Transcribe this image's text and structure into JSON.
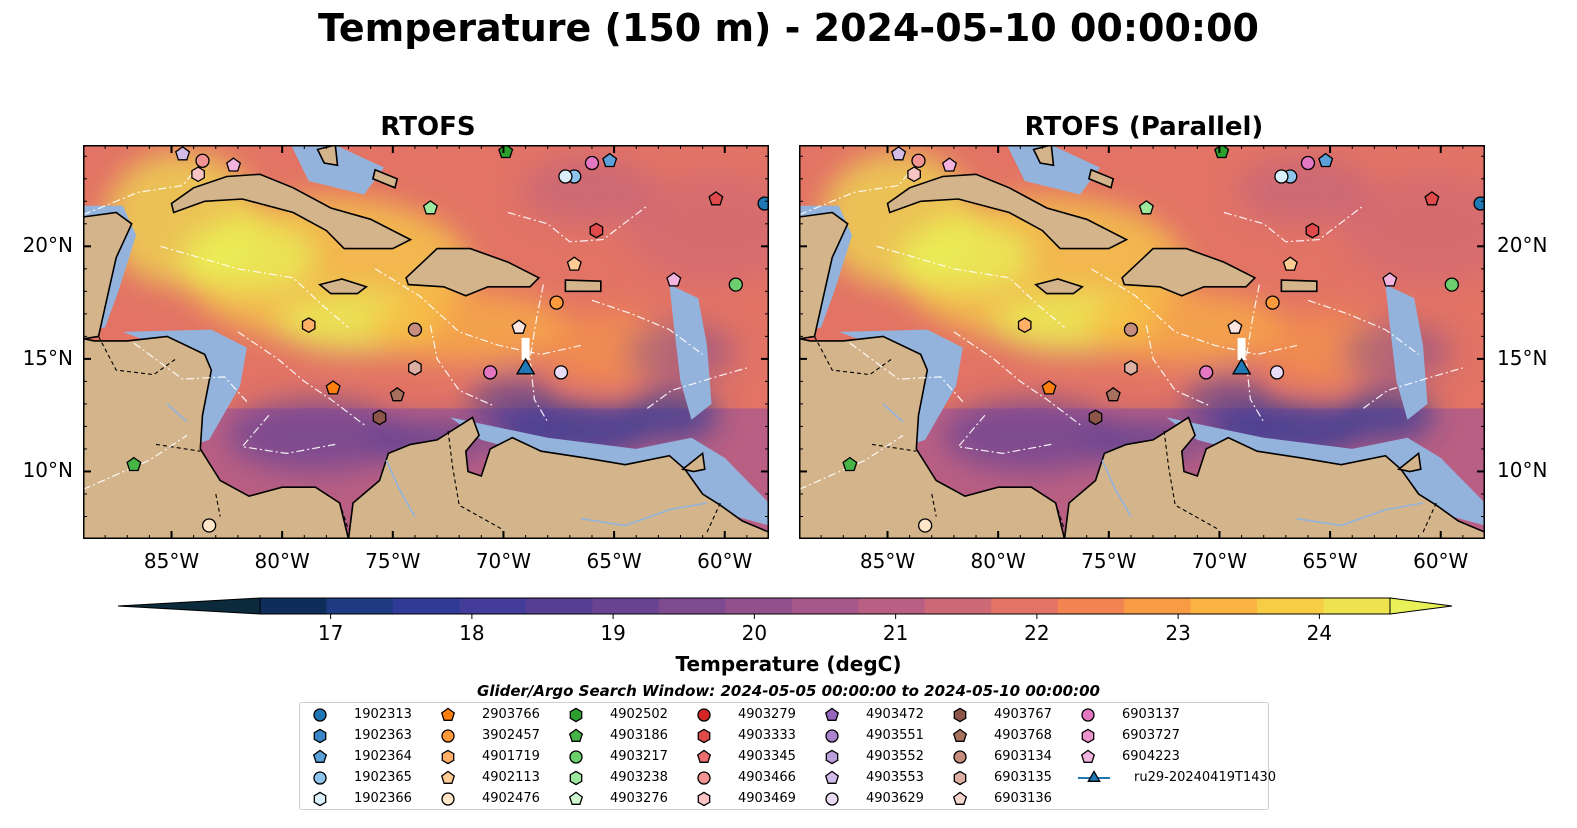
{
  "title": "Temperature (150 m) - 2024-05-10 00:00:00",
  "panels": [
    {
      "title": "RTOFS"
    },
    {
      "title": "RTOFS (Parallel)"
    }
  ],
  "axes": {
    "lon_ticks": [
      "85°W",
      "80°W",
      "75°W",
      "70°W",
      "65°W",
      "60°W"
    ],
    "lat_ticks": [
      "20°N",
      "15°N",
      "10°N"
    ],
    "lon_range": [
      -89.0,
      -58.0
    ],
    "lat_range": [
      7.0,
      24.5
    ]
  },
  "colorbar": {
    "label": "Temperature (degC)",
    "ticks": [
      "17",
      "18",
      "19",
      "20",
      "21",
      "22",
      "23",
      "24"
    ],
    "range": [
      16.5,
      24.5
    ],
    "step": 0.5,
    "extend": "both",
    "colors": [
      "#0b2a3c",
      "#0e2d5a",
      "#1e3a82",
      "#2f3b96",
      "#433c98",
      "#573e95",
      "#6b4393",
      "#7e4b90",
      "#92518d",
      "#a5578a",
      "#b95f83",
      "#cd6877",
      "#e27365",
      "#f18451",
      "#f99a45",
      "#fbb341",
      "#f7cd45",
      "#efe24f",
      "#e8f157"
    ]
  },
  "map_colors": {
    "land": "#d4b48a",
    "shelf": "#94b3dc",
    "deep_pacific": "#082533",
    "coast": "#000000",
    "eez": "#ffffff"
  },
  "legend": {
    "title": "Glider/Argo Search Window: 2024-05-05 00:00:00 to 2024-05-10 00:00:00",
    "items": [
      {
        "label": "1902313",
        "marker": "circle",
        "color": "#1f77b4"
      },
      {
        "label": "1902363",
        "marker": "hexagon",
        "color": "#3a86c8"
      },
      {
        "label": "1902364",
        "marker": "pentagon",
        "color": "#5ca0d8"
      },
      {
        "label": "1902365",
        "marker": "circle",
        "color": "#8ec3ec"
      },
      {
        "label": "1902366",
        "marker": "hexagon",
        "color": "#dbeefb"
      },
      {
        "label": "2903766",
        "marker": "pentagon",
        "color": "#ff7f0e"
      },
      {
        "label": "3902457",
        "marker": "circle",
        "color": "#ff9a3c"
      },
      {
        "label": "4901719",
        "marker": "hexagon",
        "color": "#ffb066"
      },
      {
        "label": "4902113",
        "marker": "pentagon",
        "color": "#ffcb94"
      },
      {
        "label": "4902476",
        "marker": "circle",
        "color": "#ffe6c8"
      },
      {
        "label": "4902502",
        "marker": "hexagon",
        "color": "#2ca02c"
      },
      {
        "label": "4903186",
        "marker": "pentagon",
        "color": "#46b446"
      },
      {
        "label": "4903217",
        "marker": "circle",
        "color": "#6cce6c"
      },
      {
        "label": "4903238",
        "marker": "hexagon",
        "color": "#9ee89e"
      },
      {
        "label": "4903276",
        "marker": "pentagon",
        "color": "#d0f8d0"
      },
      {
        "label": "4903279",
        "marker": "circle",
        "color": "#d62728"
      },
      {
        "label": "4903333",
        "marker": "hexagon",
        "color": "#e04a4a"
      },
      {
        "label": "4903345",
        "marker": "pentagon",
        "color": "#ea6e6e"
      },
      {
        "label": "4903466",
        "marker": "circle",
        "color": "#f29494"
      },
      {
        "label": "4903469",
        "marker": "hexagon",
        "color": "#fac4c4"
      },
      {
        "label": "4903472",
        "marker": "pentagon",
        "color": "#9467bd"
      },
      {
        "label": "4903551",
        "marker": "circle",
        "color": "#a882cc"
      },
      {
        "label": "4903552",
        "marker": "hexagon",
        "color": "#bc9ed9"
      },
      {
        "label": "4903553",
        "marker": "pentagon",
        "color": "#d2bce8"
      },
      {
        "label": "4903629",
        "marker": "circle",
        "color": "#e8dcf5"
      },
      {
        "label": "4903767",
        "marker": "hexagon",
        "color": "#8c564b"
      },
      {
        "label": "4903768",
        "marker": "pentagon",
        "color": "#a8705f"
      },
      {
        "label": "6903134",
        "marker": "circle",
        "color": "#c48d7e"
      },
      {
        "label": "6903135",
        "marker": "hexagon",
        "color": "#ddb0a4"
      },
      {
        "label": "6903136",
        "marker": "pentagon",
        "color": "#f5d6cc"
      },
      {
        "label": "6903137",
        "marker": "circle",
        "color": "#e377c2"
      },
      {
        "label": "6903727",
        "marker": "hexagon",
        "color": "#ea94d0"
      },
      {
        "label": "6904223",
        "marker": "pentagon",
        "color": "#f2b4df"
      },
      {
        "label": "ru29-20240419T1430",
        "marker": "triangle",
        "color": "#1f77b4",
        "line": true
      }
    ]
  },
  "observations": [
    {
      "lon": -84.5,
      "lat": 24.1,
      "marker": "pentagon",
      "color": "#d2bce8"
    },
    {
      "lon": -83.6,
      "lat": 23.8,
      "marker": "circle",
      "color": "#f29494"
    },
    {
      "lon": -83.8,
      "lat": 23.2,
      "marker": "hexagon",
      "color": "#fac4c4"
    },
    {
      "lon": -82.2,
      "lat": 23.6,
      "marker": "pentagon",
      "color": "#f2b4df"
    },
    {
      "lon": -69.9,
      "lat": 24.2,
      "marker": "pentagon",
      "color": "#2ca02c"
    },
    {
      "lon": -66.0,
      "lat": 23.7,
      "marker": "circle",
      "color": "#e377c2"
    },
    {
      "lon": -65.2,
      "lat": 23.8,
      "marker": "pentagon",
      "color": "#5ca0d8"
    },
    {
      "lon": -66.8,
      "lat": 23.1,
      "marker": "circle",
      "color": "#8ec3ec"
    },
    {
      "lon": -67.2,
      "lat": 23.1,
      "marker": "circle",
      "color": "#dbeefb"
    },
    {
      "lon": -73.3,
      "lat": 21.7,
      "marker": "pentagon",
      "color": "#9ee89e"
    },
    {
      "lon": -60.4,
      "lat": 22.1,
      "marker": "pentagon",
      "color": "#e04a4a"
    },
    {
      "lon": -58.2,
      "lat": 21.9,
      "marker": "circle",
      "color": "#1f77b4"
    },
    {
      "lon": -65.8,
      "lat": 20.7,
      "marker": "hexagon",
      "color": "#e04a4a"
    },
    {
      "lon": -66.8,
      "lat": 19.2,
      "marker": "pentagon",
      "color": "#ffcb94"
    },
    {
      "lon": -62.3,
      "lat": 18.5,
      "marker": "pentagon",
      "color": "#f2b4df"
    },
    {
      "lon": -59.5,
      "lat": 18.3,
      "marker": "circle",
      "color": "#6cce6c"
    },
    {
      "lon": -67.6,
      "lat": 17.5,
      "marker": "circle",
      "color": "#ff9a3c"
    },
    {
      "lon": -69.3,
      "lat": 16.4,
      "marker": "pentagon",
      "color": "#fde6df"
    },
    {
      "lon": -78.8,
      "lat": 16.5,
      "marker": "hexagon",
      "color": "#ffb066"
    },
    {
      "lon": -74.0,
      "lat": 16.3,
      "marker": "circle",
      "color": "#c48d7e"
    },
    {
      "lon": -74.0,
      "lat": 14.6,
      "marker": "hexagon",
      "color": "#ddb0a4"
    },
    {
      "lon": -70.6,
      "lat": 14.4,
      "marker": "circle",
      "color": "#e377c2"
    },
    {
      "lon": -67.4,
      "lat": 14.4,
      "marker": "circle",
      "color": "#e8dcf5"
    },
    {
      "lon": -77.7,
      "lat": 13.7,
      "marker": "pentagon",
      "color": "#ff7f0e"
    },
    {
      "lon": -74.8,
      "lat": 13.4,
      "marker": "pentagon",
      "color": "#a8705f"
    },
    {
      "lon": -75.6,
      "lat": 12.4,
      "marker": "hexagon",
      "color": "#8c564b"
    },
    {
      "lon": -86.7,
      "lat": 10.3,
      "marker": "pentagon",
      "color": "#46b446"
    },
    {
      "lon": -83.3,
      "lat": 7.6,
      "marker": "circle",
      "color": "#ffe6c8"
    }
  ],
  "glider": {
    "lon": -69.0,
    "lat": 14.6,
    "color": "#1f77b4"
  }
}
